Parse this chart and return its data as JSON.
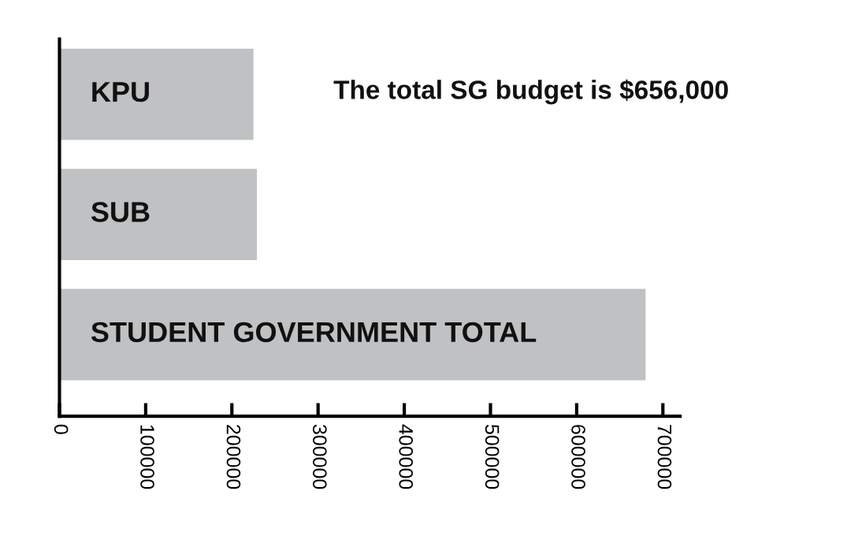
{
  "chart_data": {
    "type": "bar",
    "orientation": "horizontal",
    "categories": [
      "KPU",
      "SUB",
      "STUDENT GOVERNMENT TOTAL"
    ],
    "values": [
      225000,
      229000,
      680000
    ],
    "color": "#c0c1c3",
    "xlim": [
      0,
      720000
    ],
    "xticks": [
      0,
      100000,
      200000,
      300000,
      400000,
      500000,
      600000,
      700000
    ],
    "annotations": [
      "The total SG budget is $656,000"
    ],
    "tick_labels": "x",
    "grid": false,
    "legend": false
  }
}
